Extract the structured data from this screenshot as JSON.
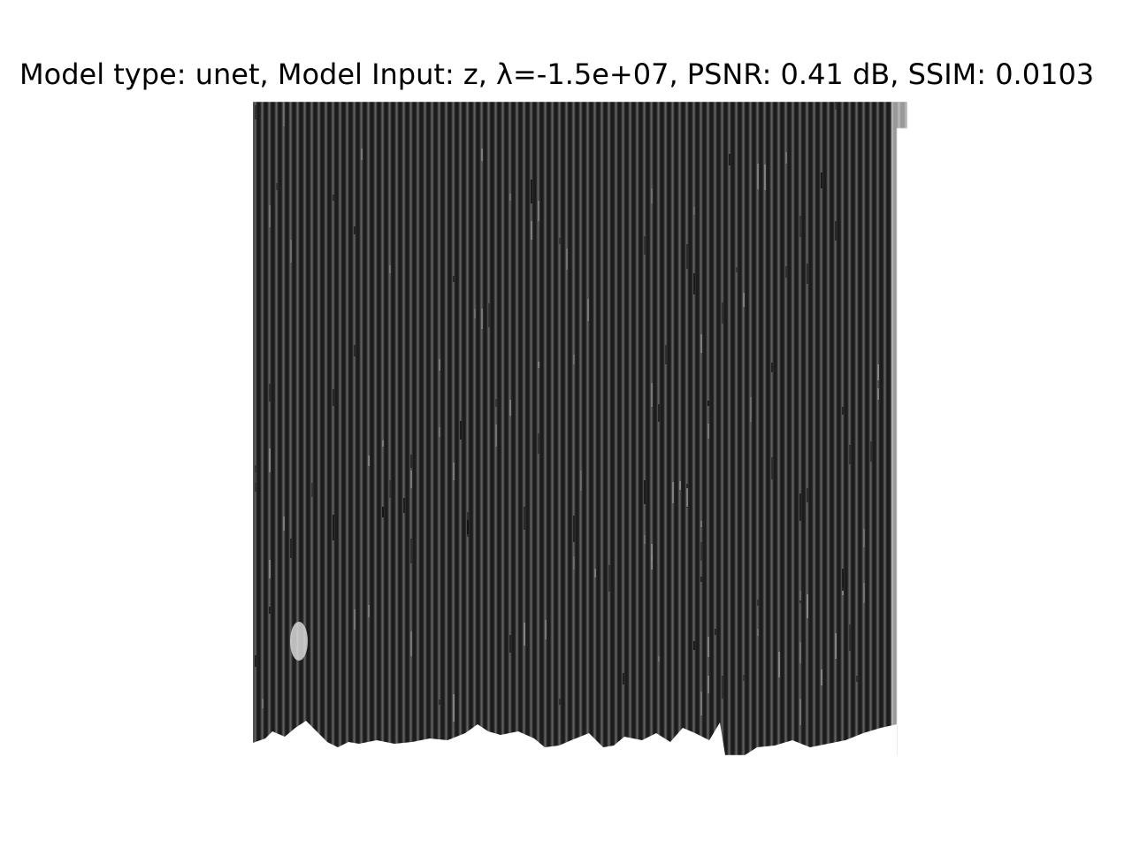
{
  "figure": {
    "title": "Model type: unet, Model Input: z, λ=-1.5e+07, PSNR: 0.41 dB, SSIM: 0.0103"
  },
  "image": {
    "subject": "striped-grayscale-reconstruction",
    "colors": {
      "background": "#ffffff",
      "dark": "#1c1c1c",
      "mid": "#3a3a3a",
      "light": "#9a9a9a"
    }
  }
}
